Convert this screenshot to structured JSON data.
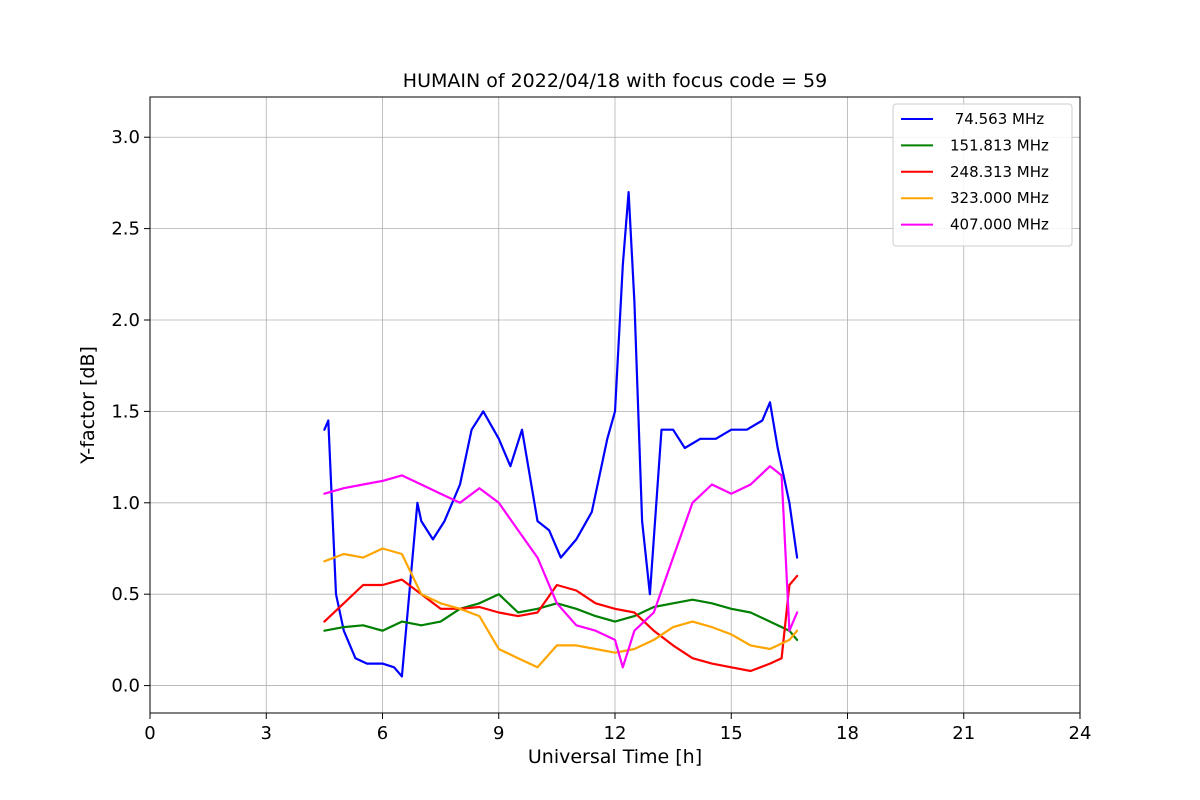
{
  "chart_data": {
    "type": "line",
    "title": "HUMAIN of 2022/04/18 with focus code = 59",
    "xlabel": "Universal Time [h]",
    "ylabel": "Y-factor [dB]",
    "xlim": [
      0,
      24
    ],
    "ylim": [
      -0.15,
      3.22
    ],
    "xticks": [
      0,
      3,
      6,
      9,
      12,
      15,
      18,
      21,
      24
    ],
    "yticks": [
      0.0,
      0.5,
      1.0,
      1.5,
      2.0,
      2.5,
      3.0
    ],
    "ytick_labels": [
      "0.0",
      "0.5",
      "1.0",
      "1.5",
      "2.0",
      "2.5",
      "3.0"
    ],
    "grid": true,
    "legend_position": "top-right",
    "series": [
      {
        "name": " 74.563 MHz",
        "color": "#0000ff",
        "x": [
          4.5,
          4.6,
          4.8,
          5.0,
          5.3,
          5.6,
          6.0,
          6.3,
          6.5,
          6.9,
          7.0,
          7.3,
          7.6,
          8.0,
          8.3,
          8.6,
          9.0,
          9.3,
          9.6,
          10.0,
          10.3,
          10.6,
          11.0,
          11.4,
          11.8,
          12.0,
          12.2,
          12.35,
          12.5,
          12.7,
          12.9,
          13.2,
          13.5,
          13.8,
          14.2,
          14.6,
          15.0,
          15.4,
          15.8,
          16.0,
          16.2,
          16.5,
          16.7
        ],
        "y": [
          1.4,
          1.45,
          0.5,
          0.3,
          0.15,
          0.12,
          0.12,
          0.1,
          0.05,
          1.0,
          0.9,
          0.8,
          0.9,
          1.1,
          1.4,
          1.5,
          1.35,
          1.2,
          1.4,
          0.9,
          0.85,
          0.7,
          0.8,
          0.95,
          1.35,
          1.5,
          2.3,
          2.7,
          2.1,
          0.9,
          0.5,
          1.4,
          1.4,
          1.3,
          1.35,
          1.35,
          1.4,
          1.4,
          1.45,
          1.55,
          1.3,
          1.0,
          0.7
        ]
      },
      {
        "name": "151.813 MHz",
        "color": "#008000",
        "x": [
          4.5,
          5.0,
          5.5,
          6.0,
          6.5,
          7.0,
          7.5,
          8.0,
          8.5,
          9.0,
          9.5,
          10.0,
          10.5,
          11.0,
          11.5,
          12.0,
          12.5,
          13.0,
          13.5,
          14.0,
          14.5,
          15.0,
          15.5,
          16.0,
          16.5,
          16.7
        ],
        "y": [
          0.3,
          0.32,
          0.33,
          0.3,
          0.35,
          0.33,
          0.35,
          0.42,
          0.45,
          0.5,
          0.4,
          0.42,
          0.45,
          0.42,
          0.38,
          0.35,
          0.38,
          0.43,
          0.45,
          0.47,
          0.45,
          0.42,
          0.4,
          0.35,
          0.3,
          0.25
        ]
      },
      {
        "name": "248.313 MHz",
        "color": "#ff0000",
        "x": [
          4.5,
          5.0,
          5.5,
          6.0,
          6.5,
          7.0,
          7.5,
          8.0,
          8.5,
          9.0,
          9.5,
          10.0,
          10.5,
          11.0,
          11.5,
          12.0,
          12.5,
          13.0,
          13.5,
          14.0,
          14.5,
          15.0,
          15.5,
          16.0,
          16.3,
          16.5,
          16.7
        ],
        "y": [
          0.35,
          0.45,
          0.55,
          0.55,
          0.58,
          0.5,
          0.42,
          0.42,
          0.43,
          0.4,
          0.38,
          0.4,
          0.55,
          0.52,
          0.45,
          0.42,
          0.4,
          0.3,
          0.22,
          0.15,
          0.12,
          0.1,
          0.08,
          0.12,
          0.15,
          0.55,
          0.6
        ]
      },
      {
        "name": "323.000 MHz",
        "color": "#ffa500",
        "x": [
          4.5,
          5.0,
          5.5,
          6.0,
          6.5,
          7.0,
          7.5,
          8.0,
          8.5,
          9.0,
          9.5,
          10.0,
          10.5,
          11.0,
          11.5,
          12.0,
          12.5,
          13.0,
          13.5,
          14.0,
          14.5,
          15.0,
          15.5,
          16.0,
          16.5,
          16.7
        ],
        "y": [
          0.68,
          0.72,
          0.7,
          0.75,
          0.72,
          0.5,
          0.45,
          0.42,
          0.38,
          0.2,
          0.15,
          0.1,
          0.22,
          0.22,
          0.2,
          0.18,
          0.2,
          0.25,
          0.32,
          0.35,
          0.32,
          0.28,
          0.22,
          0.2,
          0.25,
          0.3
        ]
      },
      {
        "name": "407.000 MHz",
        "color": "#ff00ff",
        "x": [
          4.5,
          5.0,
          5.5,
          6.0,
          6.5,
          7.0,
          7.5,
          8.0,
          8.5,
          9.0,
          9.5,
          10.0,
          10.5,
          11.0,
          11.5,
          12.0,
          12.2,
          12.5,
          13.0,
          13.5,
          14.0,
          14.5,
          15.0,
          15.5,
          16.0,
          16.3,
          16.5,
          16.7
        ],
        "y": [
          1.05,
          1.08,
          1.1,
          1.12,
          1.15,
          1.1,
          1.05,
          1.0,
          1.08,
          1.0,
          0.85,
          0.7,
          0.45,
          0.33,
          0.3,
          0.25,
          0.1,
          0.3,
          0.4,
          0.7,
          1.0,
          1.1,
          1.05,
          1.1,
          1.2,
          1.15,
          0.3,
          0.4
        ]
      }
    ]
  }
}
